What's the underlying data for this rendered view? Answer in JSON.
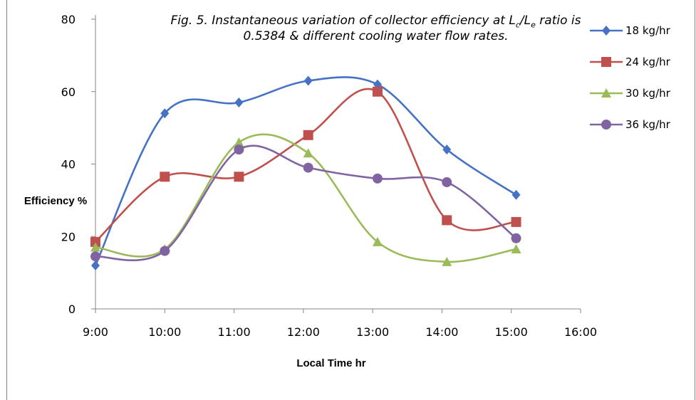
{
  "figure": {
    "caption_pre": "Fig. 5. Instantaneous variation of collector efficiency at L",
    "caption_sub1": "c",
    "caption_mid": "/L",
    "caption_sub2": "e",
    "caption_post": " ratio is",
    "caption_line2": "0.5384 & different cooling water flow rates."
  },
  "colors": {
    "18": "#4572C4",
    "24": "#C0504D",
    "30": "#9BBB59",
    "36": "#8064A2"
  },
  "chart_data": {
    "type": "line",
    "title": "",
    "xlabel": "Local Time hr",
    "ylabel": "Efficiency %",
    "x_ticks": [
      "9:00",
      "10:00",
      "11:00",
      "12:00",
      "13:00",
      "14:00",
      "15:00",
      "16:00"
    ],
    "y_ticks": [
      0,
      20,
      40,
      60,
      80
    ],
    "xlim": [
      9,
      16
    ],
    "ylim": [
      0,
      80
    ],
    "smooth": true,
    "legend_position": "right",
    "series": [
      {
        "name": "18 kg/hr",
        "marker": "diamond",
        "color": "#4572C4",
        "x": [
          9.0,
          10.0,
          11.07,
          12.07,
          13.07,
          14.07,
          15.07
        ],
        "y": [
          12,
          54,
          57,
          63,
          62,
          44,
          31.5
        ]
      },
      {
        "name": "24 kg/hr",
        "marker": "square",
        "color": "#C0504D",
        "x": [
          9.0,
          10.0,
          11.07,
          12.07,
          13.07,
          14.07,
          15.07
        ],
        "y": [
          18.5,
          36.5,
          36.5,
          48,
          60,
          24.5,
          24
        ]
      },
      {
        "name": "30 kg/hr",
        "marker": "triangle",
        "color": "#9BBB59",
        "x": [
          9.0,
          10.0,
          11.07,
          12.07,
          13.07,
          14.07,
          15.07
        ],
        "y": [
          17,
          16.5,
          46,
          43,
          18.5,
          13,
          16.5
        ]
      },
      {
        "name": "36 kg/hr",
        "marker": "circle",
        "color": "#8064A2",
        "x": [
          9.0,
          10.0,
          11.07,
          12.07,
          13.07,
          14.07,
          15.07
        ],
        "y": [
          14.5,
          16,
          44,
          39,
          36,
          35,
          19.5
        ]
      }
    ]
  }
}
